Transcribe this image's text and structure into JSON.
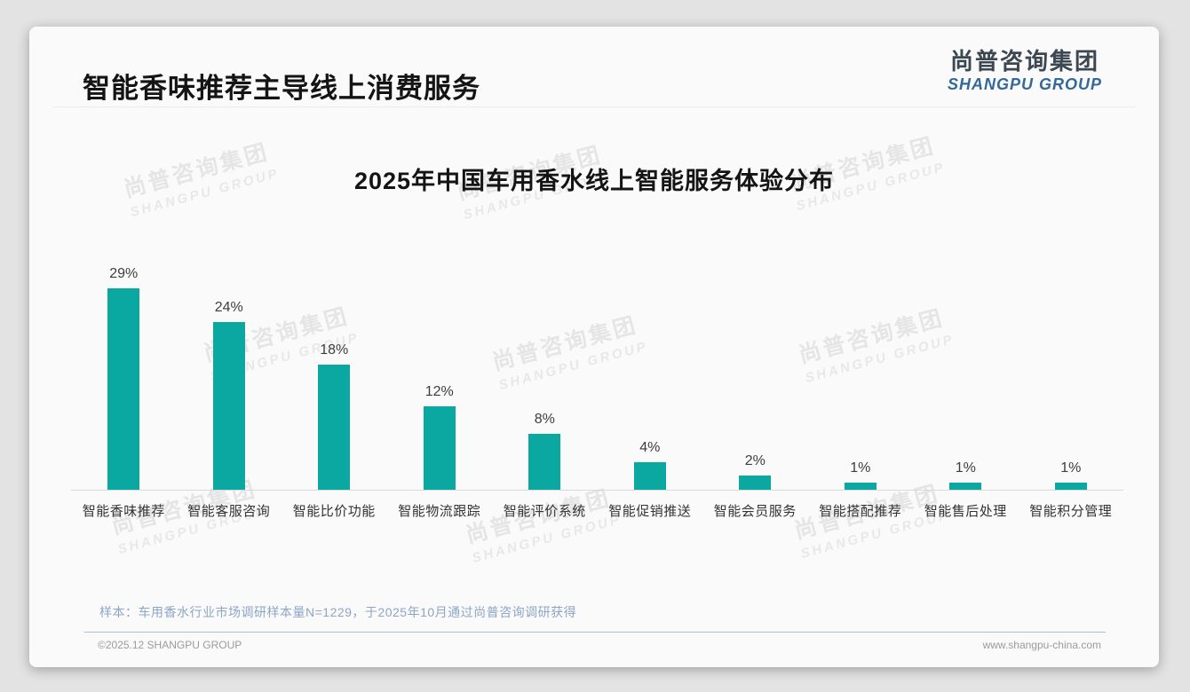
{
  "header": {
    "title": "智能香味推荐主导线上消费服务"
  },
  "logo": {
    "cn": "尚普咨询集团",
    "en": "SHANGPU GROUP"
  },
  "watermark": {
    "cn": "尚普咨询集团",
    "en": "SHANGPU GROUP"
  },
  "chart_data": {
    "type": "bar",
    "title": "2025年中国车用香水线上智能服务体验分布",
    "categories": [
      "智能香味推荐",
      "智能客服咨询",
      "智能比价功能",
      "智能物流跟踪",
      "智能评价系统",
      "智能促销推送",
      "智能会员服务",
      "智能搭配推荐",
      "智能售后处理",
      "智能积分管理"
    ],
    "values": [
      29,
      24,
      18,
      12,
      8,
      4,
      2,
      1,
      1,
      1
    ],
    "unit": "%",
    "value_labels": [
      "29%",
      "24%",
      "18%",
      "12%",
      "8%",
      "4%",
      "2%",
      "1%",
      "1%",
      "1%"
    ],
    "ylim": [
      0,
      30
    ],
    "grid": false,
    "legend": false,
    "bar_color": "#0aa8a1",
    "axis_color": "#d9d9d9"
  },
  "footnote": "样本：车用香水行业市场调研样本量N=1229，于2025年10月通过尚普咨询调研获得",
  "footer": {
    "copyright": "©2025.12 SHANGPU GROUP",
    "website": "www.shangpu-china.com"
  }
}
